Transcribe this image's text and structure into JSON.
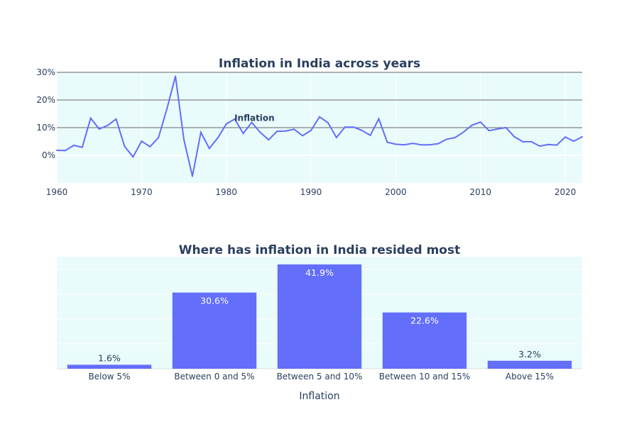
{
  "chart_data": [
    {
      "type": "line",
      "title": "Inflation in India across years",
      "xlabel": "",
      "ylabel": "",
      "xlim": [
        1960,
        2022
      ],
      "ylim": [
        -10,
        30
      ],
      "yticks": [
        0,
        10,
        20,
        30
      ],
      "ytick_labels": [
        "0%",
        "10%",
        "20%",
        "30%"
      ],
      "xticks": [
        1960,
        1970,
        1980,
        1990,
        2000,
        2010,
        2020
      ],
      "grid": true,
      "colors": {
        "line": "#636efa",
        "plot_bg": "#e9fbfa",
        "gridline": "#666666"
      },
      "annotation": {
        "text": "Inflation",
        "x": 1985,
        "y": 13.5
      },
      "series": [
        {
          "x": [
            1960,
            1961,
            1962,
            1963,
            1964,
            1965,
            1966,
            1967,
            1968,
            1969,
            1970,
            1971,
            1972,
            1973,
            1974,
            1975,
            1976,
            1977,
            1978,
            1979,
            1980,
            1981,
            1982,
            1983,
            1984,
            1985,
            1986,
            1987,
            1988,
            1989,
            1990,
            1991,
            1992,
            1993,
            1994,
            1995,
            1996,
            1997,
            1998,
            1999,
            2000,
            2001,
            2002,
            2003,
            2004,
            2005,
            2006,
            2007,
            2008,
            2009,
            2010,
            2011,
            2012,
            2013,
            2014,
            2015,
            2016,
            2017,
            2018,
            2019,
            2020,
            2021,
            2022
          ],
          "y": [
            1.8,
            1.7,
            3.6,
            2.9,
            13.4,
            9.5,
            10.8,
            13.1,
            3.2,
            -0.6,
            5.1,
            3.1,
            6.4,
            16.9,
            28.6,
            5.7,
            -7.6,
            8.3,
            2.5,
            6.3,
            11.3,
            13.1,
            7.9,
            11.9,
            8.3,
            5.6,
            8.7,
            8.8,
            9.4,
            7.1,
            9.0,
            13.9,
            11.8,
            6.4,
            10.2,
            10.2,
            9.0,
            7.2,
            13.2,
            4.7,
            4.0,
            3.8,
            4.3,
            3.8,
            3.8,
            4.2,
            5.8,
            6.4,
            8.4,
            10.9,
            12.0,
            8.9,
            9.5,
            10.0,
            6.7,
            4.9,
            4.9,
            3.3,
            3.9,
            3.7,
            6.6,
            5.1,
            6.7
          ]
        }
      ]
    },
    {
      "type": "bar",
      "title": "Where has inflation in India resided most",
      "xlabel": "Inflation",
      "ylabel": "",
      "ylim": [
        0,
        45
      ],
      "categories": [
        "Below 5%",
        "Between 0 and 5%",
        "Between 5 and 10%",
        "Between 10 and 15%",
        "Above 15%"
      ],
      "values": [
        1.6,
        30.6,
        41.9,
        22.6,
        3.2
      ],
      "data_labels": [
        "1.6%",
        "30.6%",
        "41.9%",
        "22.6%",
        "3.2%"
      ],
      "grid": true,
      "colors": {
        "bar": "#636efa",
        "plot_bg": "#e9fbfa",
        "inside_label": "#ffffff",
        "outside_label": "#2a3f5f"
      }
    }
  ]
}
